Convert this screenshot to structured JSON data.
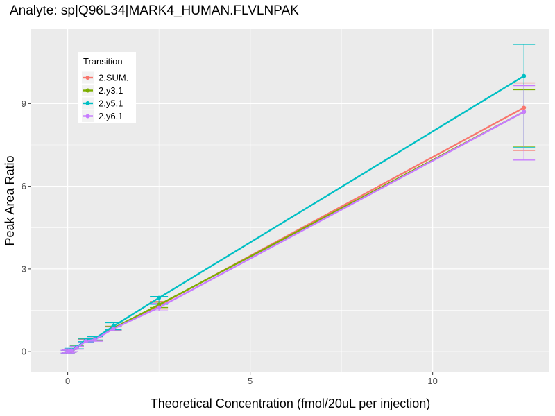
{
  "chart_data": {
    "type": "line",
    "title": "Analyte: sp|Q96L34|MARK4_HUMAN.FLVLNPAK",
    "xlabel": "Theoretical Concentration (fmol/20uL per injection)",
    "ylabel": "Peak Area Ratio",
    "xlim": [
      -1,
      13.2
    ],
    "ylim": [
      -0.75,
      11.7
    ],
    "x_ticks": [
      0,
      5,
      10
    ],
    "y_ticks": [
      0,
      3,
      6,
      9
    ],
    "x_tick_labels": [
      "0",
      "5",
      "10"
    ],
    "y_tick_labels": [
      "0",
      "3",
      "6",
      "9"
    ],
    "grid": true,
    "legend": {
      "title": "Transition",
      "position": "top-left"
    },
    "x": [
      0,
      0.05,
      0.1,
      0.25,
      0.5,
      0.75,
      1.25,
      2.5,
      12.5
    ],
    "series": [
      {
        "name": "2.SUM.",
        "color": "#F8766D",
        "values": [
          0.0,
          0.03,
          0.05,
          0.15,
          0.4,
          0.45,
          0.85,
          1.68,
          8.85
        ],
        "error_low": [
          -0.05,
          -0.02,
          0.0,
          0.1,
          0.35,
          0.4,
          0.78,
          1.55,
          7.3
        ],
        "error_high": [
          0.05,
          0.08,
          0.1,
          0.2,
          0.45,
          0.5,
          0.92,
          1.82,
          9.75
        ]
      },
      {
        "name": "2.y3.1",
        "color": "#7CAE00",
        "values": [
          0.0,
          0.03,
          0.05,
          0.15,
          0.4,
          0.45,
          0.85,
          1.7,
          8.7
        ],
        "error_low": [
          -0.05,
          -0.02,
          0.0,
          0.1,
          0.35,
          0.4,
          0.78,
          1.6,
          7.45
        ],
        "error_high": [
          0.05,
          0.08,
          0.1,
          0.2,
          0.45,
          0.5,
          0.92,
          1.8,
          9.5
        ]
      },
      {
        "name": "2.y5.1",
        "color": "#00BFC4",
        "values": [
          0.0,
          0.03,
          0.06,
          0.17,
          0.42,
          0.48,
          0.92,
          1.95,
          10.0
        ],
        "error_low": [
          -0.05,
          -0.02,
          0.0,
          0.1,
          0.36,
          0.42,
          0.8,
          1.72,
          7.4
        ],
        "error_high": [
          0.05,
          0.08,
          0.12,
          0.24,
          0.48,
          0.55,
          1.05,
          2.0,
          11.15
        ]
      },
      {
        "name": "2.y6.1",
        "color": "#C77CFF",
        "values": [
          0.0,
          0.03,
          0.05,
          0.14,
          0.38,
          0.44,
          0.83,
          1.6,
          8.7
        ],
        "error_low": [
          -0.05,
          -0.02,
          0.0,
          0.09,
          0.33,
          0.38,
          0.76,
          1.48,
          6.95
        ],
        "error_high": [
          0.05,
          0.08,
          0.1,
          0.19,
          0.43,
          0.5,
          0.9,
          1.75,
          9.65
        ]
      }
    ]
  }
}
